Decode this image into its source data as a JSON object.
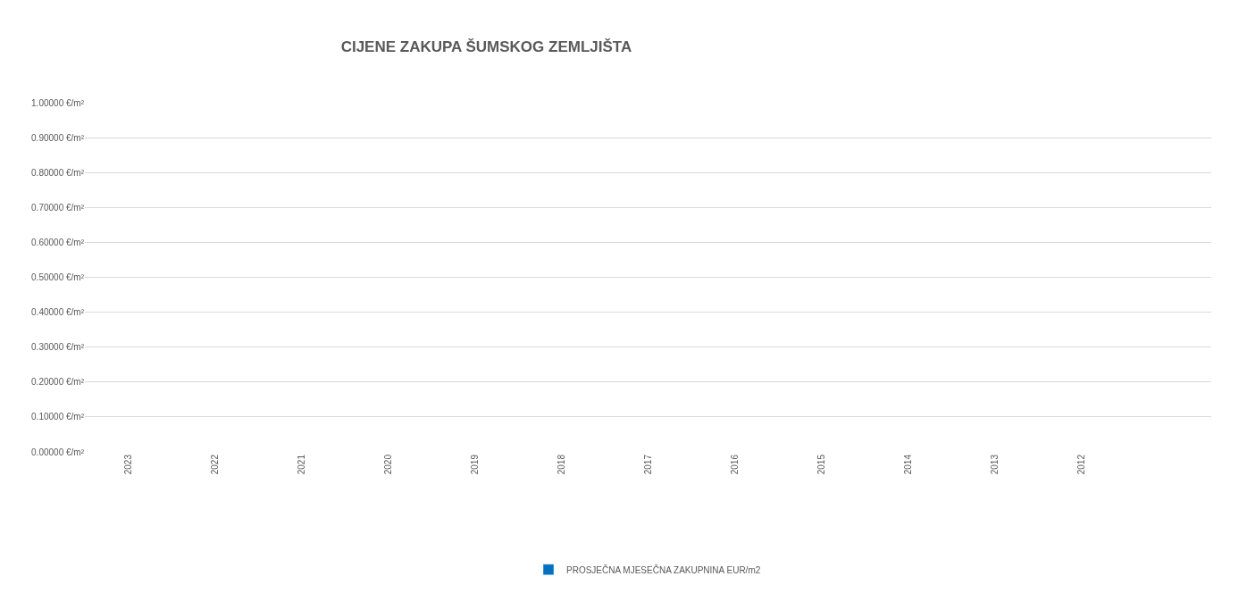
{
  "chart_data": {
    "type": "bar",
    "title": "CIJENE ZAKUPA ŠUMSKOG ZEMLJIŠTA",
    "categories": [
      "2023",
      "2022",
      "2021",
      "2020",
      "2019",
      "2018",
      "2017",
      "2016",
      "2015",
      "2014",
      "2013",
      "2012",
      null
    ],
    "series": [
      {
        "name": "PROSJEČNA MJESEČNA ZAKUPNINA EUR/m2",
        "color": "#0070c0",
        "values": [
          null,
          null,
          null,
          null,
          null,
          null,
          null,
          null,
          null,
          null,
          null,
          null,
          null
        ]
      }
    ],
    "ylim": [
      0,
      1
    ],
    "yticks": [
      {
        "value": 0,
        "label": "0.00000 €/m²"
      },
      {
        "value": 0.1,
        "label": "0.10000 €/m²"
      },
      {
        "value": 0.2,
        "label": "0.20000 €/m²"
      },
      {
        "value": 0.3,
        "label": "0.30000 €/m²"
      },
      {
        "value": 0.4,
        "label": "0.40000 €/m²"
      },
      {
        "value": 0.5,
        "label": "0.50000 €/m²"
      },
      {
        "value": 0.6,
        "label": "0.60000 €/m²"
      },
      {
        "value": 0.7,
        "label": "0.70000 €/m²"
      },
      {
        "value": 0.8,
        "label": "0.80000 €/m²"
      },
      {
        "value": 0.9,
        "label": "0.90000 €/m²"
      },
      {
        "value": 1,
        "label": "1.00000 €/m²"
      }
    ],
    "grid": "y",
    "legend": "bottom"
  }
}
